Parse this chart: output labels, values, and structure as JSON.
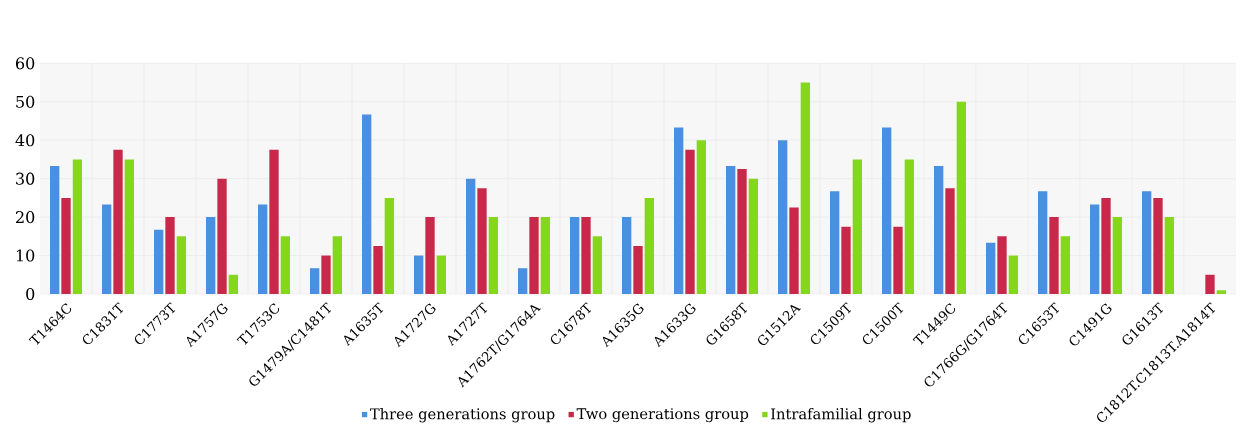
{
  "chart_data": {
    "type": "bar",
    "categories": [
      "T1464C",
      "C1831T",
      "C1773T",
      "A1757G",
      "T1753C",
      "G1479A/C1481T",
      "A1635T",
      "A1727G",
      "A1727T",
      "A1762T/G1764A",
      "C1678T",
      "A1635G",
      "A1633G",
      "G1658T",
      "G1512A",
      "C1509T",
      "C1500T",
      "T1449C",
      "C1766G/G1764T",
      "C1653T",
      "C1491G",
      "G1613T",
      "C1812T.C1813T.A1814T"
    ],
    "series": [
      {
        "name": "Three generations group",
        "color": "#4a90e2",
        "values": [
          33.3,
          23.3,
          16.7,
          20,
          23.3,
          6.7,
          46.7,
          10,
          30,
          6.7,
          20,
          20,
          43.3,
          33.3,
          40,
          26.7,
          43.3,
          33.3,
          13.3,
          26.7,
          23.3,
          26.7,
          null
        ]
      },
      {
        "name": "Two generations group",
        "color": "#c8294b",
        "values": [
          25,
          37.5,
          20,
          30,
          37.5,
          10,
          12.5,
          20,
          27.5,
          20,
          20,
          12.5,
          37.5,
          32.5,
          22.5,
          17.5,
          17.5,
          27.5,
          15,
          20,
          25,
          25,
          5
        ]
      },
      {
        "name": "Intrafamilial group",
        "color": "#86d61e",
        "values": [
          35,
          35,
          15,
          5,
          15,
          15,
          25,
          10,
          20,
          20,
          15,
          25,
          40,
          30,
          55,
          35,
          35,
          50,
          10,
          15,
          20,
          20,
          1
        ]
      }
    ],
    "ylim": [
      0,
      60
    ],
    "yticks": [
      0,
      10,
      20,
      30,
      40,
      50,
      60
    ],
    "grid": true,
    "legend": "bottom"
  }
}
